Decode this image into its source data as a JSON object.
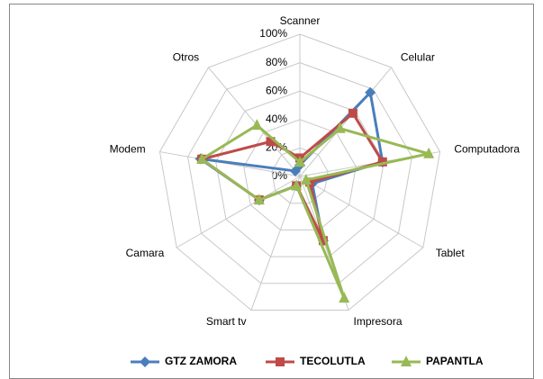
{
  "chart_data": {
    "type": "radar",
    "categories": [
      "Scanner",
      "Celular",
      "Computadora",
      "Tablet",
      "Impresora",
      "Smart tv",
      "Camara",
      "Modem",
      "Otros"
    ],
    "ylim": [
      0,
      100
    ],
    "yticks": [
      {
        "value": 0,
        "label": "0%"
      },
      {
        "value": 20,
        "label": "20%"
      },
      {
        "value": 40,
        "label": "40%"
      },
      {
        "value": 60,
        "label": "60%"
      },
      {
        "value": 80,
        "label": "80%"
      },
      {
        "value": 100,
        "label": "100%"
      }
    ],
    "grid": true,
    "legend": "bottom",
    "series": [
      {
        "name": "GTZ ZAMORA",
        "color": "#4a7ebb",
        "marker": "diamond",
        "values": [
          8,
          77,
          59,
          10,
          48,
          7,
          33,
          71,
          5
        ]
      },
      {
        "name": "TECOLUTLA",
        "color": "#be4b48",
        "marker": "square",
        "values": [
          13,
          58,
          59,
          8,
          48,
          7,
          33,
          70,
          32
        ]
      },
      {
        "name": "PAPANTLA",
        "color": "#98b954",
        "marker": "triangle",
        "values": [
          10,
          44,
          92,
          5,
          91,
          7,
          33,
          70,
          47
        ]
      }
    ]
  }
}
